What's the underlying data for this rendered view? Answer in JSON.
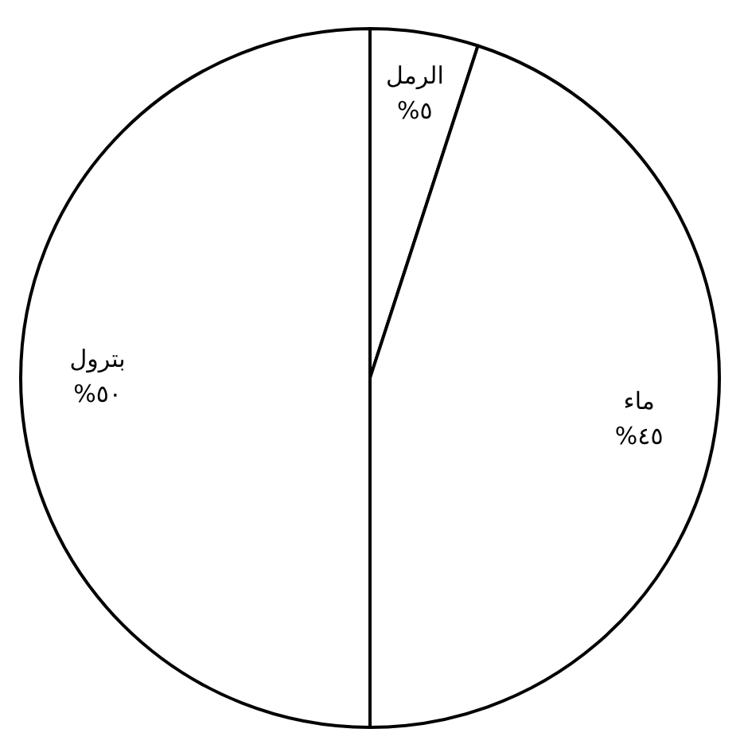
{
  "chart_data": {
    "type": "pie",
    "categories": [
      "الرمل",
      "ماء",
      "بترول"
    ],
    "values": [
      5,
      45,
      50
    ],
    "value_labels": [
      "%٥",
      "%٤٥",
      "%٥٠"
    ],
    "colors": [
      "#ffffff",
      "#ffffff",
      "#ffffff"
    ],
    "legend": false
  }
}
